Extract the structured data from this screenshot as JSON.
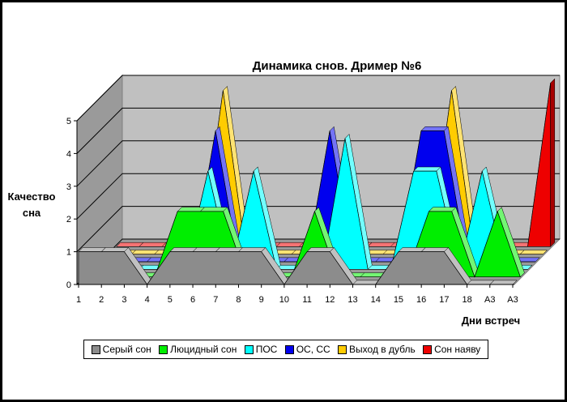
{
  "chart_data": {
    "type": "area",
    "title": "Динамика снов.  Дример №6",
    "xlabel": "Дни встреч",
    "ylabel_line1": "Качество",
    "ylabel_line2": "сна",
    "categories": [
      "1",
      "2",
      "3",
      "4",
      "5",
      "6",
      "7",
      "8",
      "9",
      "10",
      "11",
      "12",
      "13",
      "14",
      "15",
      "16",
      "17",
      "18",
      "А3",
      "А3"
    ],
    "ylim": [
      0,
      5
    ],
    "yticks": [
      "0",
      "1",
      "2",
      "3",
      "4",
      "5"
    ],
    "grid": true,
    "legend_position": "bottom",
    "series": [
      {
        "name": "Серый сон",
        "color": "#8c8c8c",
        "values": [
          1,
          1,
          1,
          0,
          1,
          1,
          1,
          1,
          1,
          0,
          1,
          1,
          0,
          0,
          1,
          1,
          1,
          0,
          0,
          0
        ]
      },
      {
        "name": "Люцидный сон",
        "color": "#00ee00",
        "values": [
          0,
          0,
          0,
          0,
          2,
          2,
          2,
          0,
          0,
          0,
          2,
          0,
          0,
          0,
          0,
          2,
          2,
          0,
          2,
          0
        ]
      },
      {
        "name": "ПОС",
        "color": "#00ffff",
        "values": [
          0,
          0,
          0,
          0,
          0,
          3,
          0,
          3,
          0,
          0,
          0,
          4,
          0,
          0,
          3,
          3,
          0,
          3,
          0,
          0
        ]
      },
      {
        "name": "ОС, СС",
        "color": "#0000ee",
        "values": [
          0,
          0,
          0,
          0,
          0,
          4,
          0,
          0,
          0,
          0,
          4,
          0,
          0,
          0,
          4,
          4,
          0,
          0,
          0,
          0
        ]
      },
      {
        "name": "Выход в дубль",
        "color": "#ffcc00",
        "values": [
          0,
          0,
          0,
          0,
          0,
          5,
          0,
          0,
          0,
          0,
          0,
          0,
          0,
          0,
          0,
          5,
          0,
          0,
          0,
          0
        ]
      },
      {
        "name": "Сон наяву",
        "color": "#ee0000",
        "values": [
          0,
          0,
          0,
          0,
          0,
          0,
          0,
          0,
          0,
          0,
          0,
          0,
          0,
          0,
          0,
          0,
          0,
          0,
          0,
          5
        ]
      }
    ]
  }
}
